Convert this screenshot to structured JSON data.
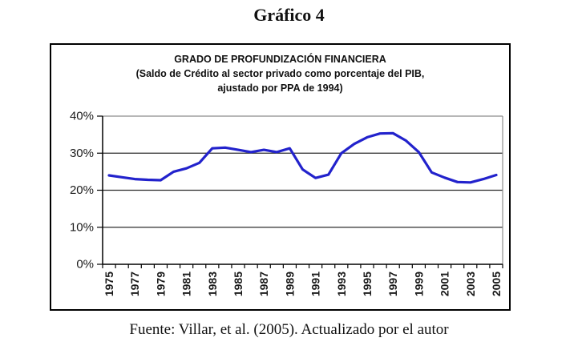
{
  "page_title": "Gráfico 4",
  "chart": {
    "title": "GRADO DE PROFUNDIZACIÓN FINANCIERA",
    "subtitle1": "(Saldo de Crédito al sector privado como porcentaje del PIB,",
    "subtitle2": "ajustado por PPA de 1994)"
  },
  "caption": "Fuente: Villar, et al. (2005). Actualizado por el autor",
  "chart_data": {
    "type": "line",
    "title": "GRADO DE PROFUNDIZACIÓN FINANCIERA",
    "subtitle": "(Saldo de Crédito al sector privado como porcentaje del PIB, ajustado por PPA de 1994)",
    "x": [
      1975,
      1976,
      1977,
      1978,
      1979,
      1980,
      1981,
      1982,
      1983,
      1984,
      1985,
      1986,
      1987,
      1988,
      1989,
      1990,
      1991,
      1992,
      1993,
      1994,
      1995,
      1996,
      1997,
      1998,
      1999,
      2000,
      2001,
      2002,
      2003,
      2004,
      2005
    ],
    "values": [
      24.0,
      23.5,
      23.0,
      22.8,
      22.7,
      25.0,
      25.9,
      27.4,
      31.3,
      31.5,
      30.9,
      30.3,
      30.9,
      30.3,
      31.3,
      25.6,
      23.3,
      24.2,
      30.0,
      32.5,
      34.3,
      35.3,
      35.4,
      33.4,
      30.3,
      24.8,
      23.4,
      22.2,
      22.1,
      23.0,
      24.1
    ],
    "x_tick_labels": [
      "1975",
      "1977",
      "1979",
      "1981",
      "1983",
      "1985",
      "1987",
      "1989",
      "1991",
      "1993",
      "1995",
      "1997",
      "1999",
      "2001",
      "2003",
      "2005"
    ],
    "y_ticks": [
      [
        0,
        "0%"
      ],
      [
        10,
        "10%"
      ],
      [
        20,
        "20%"
      ],
      [
        30,
        "30%"
      ],
      [
        40,
        "40%"
      ]
    ],
    "ylim": [
      0,
      40
    ],
    "xlabel": "",
    "ylabel": "",
    "grid": "horizontal",
    "legend": "none",
    "line_color": "#2222CC",
    "gridline_color": "#2b2b2b",
    "axis_color": "#000000",
    "plot_border_color": "#8c8c8c"
  }
}
